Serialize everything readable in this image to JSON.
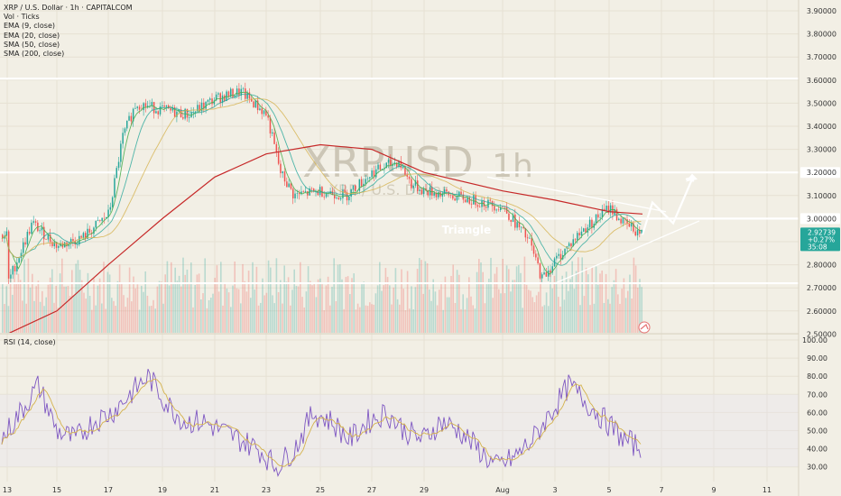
{
  "legend": {
    "title": "XRP / U.S. Dollar · 1h · CAPITALCOM",
    "vol": "Vol · Ticks",
    "ema9": "EMA (9, close)",
    "ema20": "EMA (20, close)",
    "sma50": "SMA (50, close)",
    "sma200": "SMA (200, close)"
  },
  "watermark": {
    "symbol": "XRPUSD",
    "tf": "1h",
    "sub": "XRP / U.S. Dollar"
  },
  "annotation": "Triangle",
  "rsi_label": "RSI (14, close)",
  "price_tag": {
    "price": "2.92739",
    "change": "+0.27%",
    "time": "35:08"
  },
  "colors": {
    "bg": "#f2efe5",
    "up": "#26a69a",
    "down": "#ef5350",
    "sma200": "#c62828",
    "ema": "#4caf50",
    "rsi": "#7e57c2",
    "rsi_ma": "#d4b24c"
  },
  "chart_data": [
    {
      "type": "candlestick",
      "title": "XRP / U.S. Dollar · 1h · CAPITALCOM",
      "y_ticks": [
        "3.90000",
        "3.80000",
        "3.70000",
        "3.60000",
        "3.50000",
        "3.40000",
        "3.30000",
        "3.20000",
        "3.10000",
        "3.00000",
        "2.90000",
        "2.80000",
        "2.70000",
        "2.60000",
        "2.50000"
      ],
      "ylim": [
        2.5,
        3.92
      ],
      "x_ticks": [
        "13",
        "15",
        "17",
        "19",
        "21",
        "23",
        "25",
        "27",
        "29",
        "Aug",
        "3",
        "5",
        "7",
        "9",
        "11"
      ],
      "horizontal_levels": [
        3.606,
        3.2,
        3.0,
        2.72
      ],
      "highlighted_levels": [
        "3.60600",
        "3.20000",
        "3.00000",
        "2.72000"
      ],
      "series": [
        {
          "name": "Close",
          "x": [
            "13",
            "14",
            "15",
            "16",
            "17",
            "17.5",
            "18",
            "19",
            "20",
            "21",
            "22",
            "23",
            "23.5",
            "24",
            "25",
            "26",
            "27",
            "28",
            "28.5",
            "29",
            "30",
            "Aug",
            "2",
            "2.5",
            "3",
            "4",
            "5",
            "5.5",
            "6"
          ],
          "values": [
            2.72,
            2.98,
            2.88,
            2.92,
            3.02,
            3.35,
            3.5,
            3.47,
            3.45,
            3.52,
            3.55,
            3.45,
            3.2,
            3.1,
            3.12,
            3.1,
            3.2,
            3.25,
            3.15,
            3.12,
            3.1,
            3.05,
            2.9,
            2.74,
            2.82,
            2.95,
            3.05,
            2.98,
            2.93
          ]
        },
        {
          "name": "SMA (200, close)",
          "x": [
            "13",
            "15",
            "17",
            "19",
            "21",
            "23",
            "25",
            "27",
            "29",
            "Aug",
            "3",
            "5",
            "6"
          ],
          "values": [
            2.5,
            2.6,
            2.8,
            3.0,
            3.18,
            3.28,
            3.32,
            3.3,
            3.2,
            3.12,
            3.08,
            3.03,
            3.02
          ]
        }
      ],
      "annotations": [
        "Triangle"
      ]
    },
    {
      "type": "line",
      "title": "RSI (14, close)",
      "y_ticks": [
        "100.00",
        "90.00",
        "80.00",
        "70.00",
        "60.00",
        "50.00",
        "40.00",
        "30.00"
      ],
      "ylim": [
        25,
        100
      ],
      "series": [
        {
          "name": "RSI",
          "values": [
            45,
            60,
            75,
            50,
            45,
            55,
            60,
            70,
            80,
            65,
            55,
            55,
            50,
            45,
            40,
            30,
            40,
            60,
            55,
            45,
            55,
            60,
            50,
            45,
            55,
            50,
            40,
            30,
            35,
            45,
            60,
            75,
            65,
            55,
            45,
            40
          ]
        }
      ]
    }
  ]
}
